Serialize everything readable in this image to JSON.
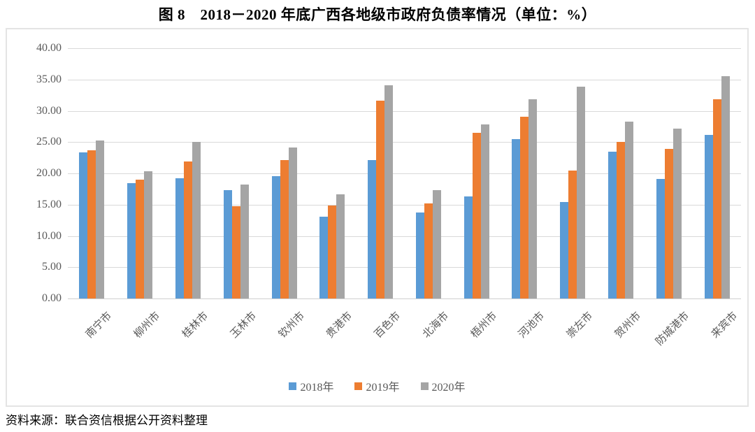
{
  "title": "图 8　2018－2020 年底广西各地级市政府负债率情况（单位：%）",
  "source_note": "资料来源：联合资信根据公开资料整理",
  "colors": {
    "series_2018": "#5B9BD5",
    "series_2019": "#ED7D31",
    "series_2020": "#A5A5A5",
    "gridline": "#D9D9D9",
    "axis_text": "#595959",
    "frame_border": "#E4E4E4",
    "title_text": "#000000"
  },
  "chart_data": {
    "type": "bar",
    "title": "图 8　2018－2020 年底广西各地级市政府负债率情况（单位：%）",
    "categories": [
      "南宁市",
      "柳州市",
      "桂林市",
      "玉林市",
      "钦州市",
      "贵港市",
      "百色市",
      "北海市",
      "梧州市",
      "河池市",
      "崇左市",
      "贺州市",
      "防城港市",
      "来宾市"
    ],
    "series": [
      {
        "name": "2018年",
        "color": "#5B9BD5",
        "values": [
          23.4,
          18.4,
          19.2,
          17.3,
          19.5,
          13.1,
          22.1,
          13.8,
          16.3,
          25.5,
          15.4,
          23.5,
          19.1,
          26.2
        ]
      },
      {
        "name": "2019年",
        "color": "#ED7D31",
        "values": [
          23.7,
          19.0,
          21.9,
          14.8,
          22.1,
          14.9,
          31.6,
          15.2,
          26.5,
          29.0,
          20.5,
          25.0,
          23.9,
          31.8
        ]
      },
      {
        "name": "2020年",
        "color": "#A5A5A5",
        "values": [
          25.2,
          20.3,
          25.0,
          18.2,
          24.1,
          16.7,
          34.1,
          17.3,
          27.8,
          31.9,
          33.9,
          28.3,
          27.1,
          35.5
        ]
      }
    ],
    "xlabel": "",
    "ylabel": "",
    "ylim": [
      0,
      40
    ],
    "ytick_step": 5,
    "ytick_labels": [
      "0.00",
      "5.00",
      "10.00",
      "15.00",
      "20.00",
      "25.00",
      "30.00",
      "35.00",
      "40.00"
    ],
    "grid": true,
    "legend_position": "bottom",
    "unit": "%"
  }
}
